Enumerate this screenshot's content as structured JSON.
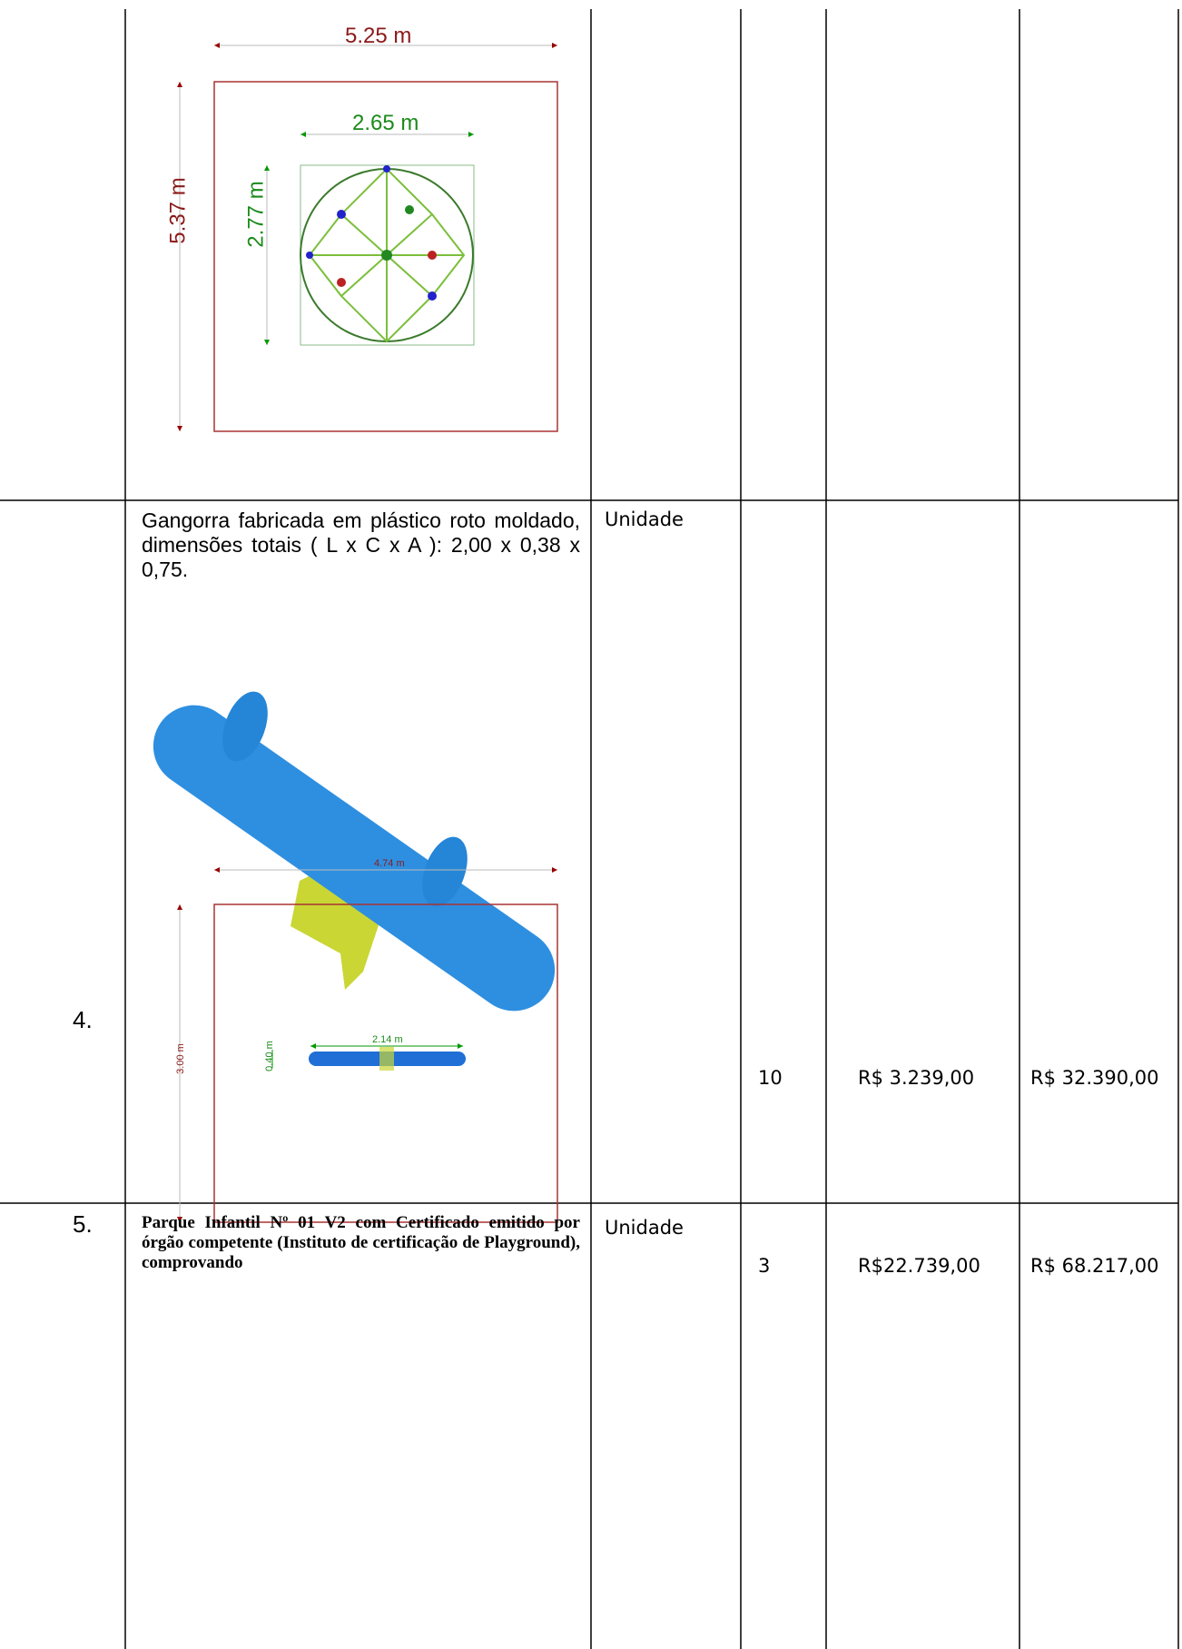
{
  "rows": [
    {
      "drawing": {
        "outer_width": "5.25 m",
        "outer_depth": "5.37 m",
        "item_width": "2.65 m",
        "item_depth": "2.77 m"
      }
    },
    {
      "number": "4.",
      "description": "Gangorra fabricada em plástico roto moldado, dimensões totais ( L x C x A ): 2,00 x 0,38 x 0,75.",
      "unit": "Unidade",
      "quantity": "10",
      "unit_price": "R$ 3.239,00",
      "total": "R$ 32.390,00",
      "drawing": {
        "outer_width": "4.74 m",
        "outer_depth": "3.00 m",
        "item_width": "2.14 m",
        "item_depth": "0.40 m"
      }
    },
    {
      "number": "5.",
      "description": "Parque Infantil Nº 01 V2 com Certificado emitido por órgão competente (Instituto de certificação de Playground), comprovando",
      "unit": "Unidade",
      "quantity": "3",
      "unit_price": "R$22.739,00",
      "total": "R$ 68.217,00"
    }
  ]
}
